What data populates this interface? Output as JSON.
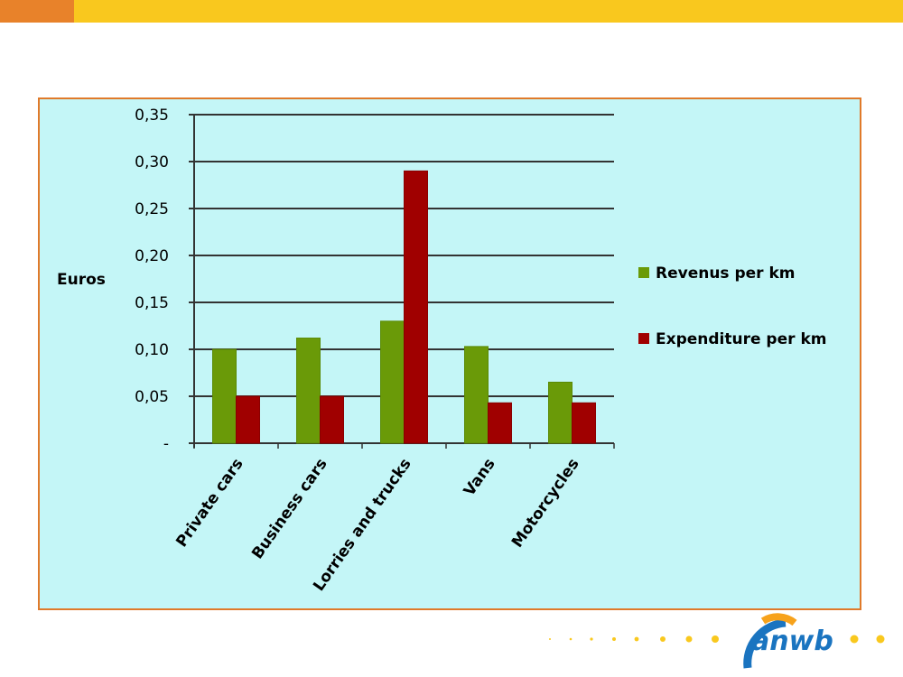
{
  "chart_data": {
    "type": "bar",
    "title": "",
    "ylabel": "Euros",
    "xlabel": "",
    "categories": [
      "Private cars",
      "Business cars",
      "Lorries and trucks",
      "Vans",
      "Motorcycles"
    ],
    "series": [
      {
        "name": "Revenus per km",
        "color": "#6a9a08",
        "values": [
          0.1,
          0.112,
          0.13,
          0.103,
          0.065
        ]
      },
      {
        "name": "Expenditure per km",
        "color": "#a00000",
        "values": [
          0.05,
          0.05,
          0.29,
          0.043,
          0.043
        ]
      }
    ],
    "ylim": [
      0,
      0.35
    ],
    "yticks": [
      "-",
      "0,05",
      "0,10",
      "0,15",
      "0,20",
      "0,25",
      "0,30",
      "0,35"
    ],
    "grid": true,
    "legend": "right"
  },
  "logo": {
    "text": "anwb"
  }
}
